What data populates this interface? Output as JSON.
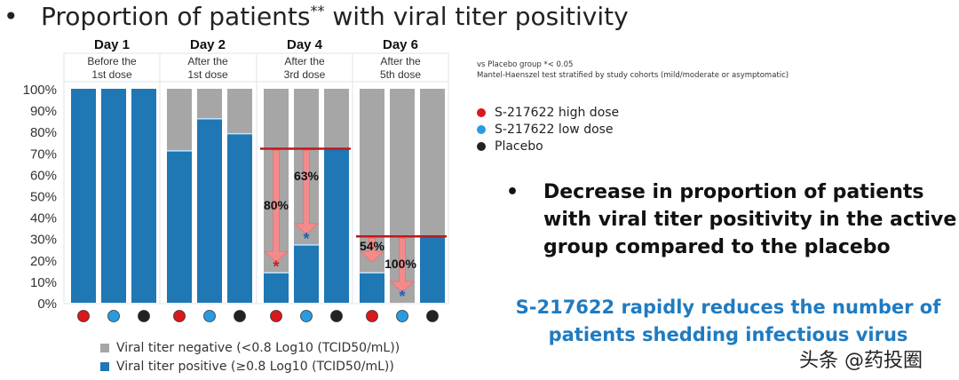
{
  "title": {
    "bullet": "•",
    "text": "Proportion of patients",
    "superscript": "**",
    "text_after": " with viral titer positivity"
  },
  "chart_data": {
    "type": "bar",
    "stacked": true,
    "ylim": [
      0,
      100
    ],
    "yticks": [
      "0%",
      "10%",
      "20%",
      "30%",
      "40%",
      "50%",
      "60%",
      "70%",
      "80%",
      "90%",
      "100%"
    ],
    "groups": [
      {
        "day": "Day 1",
        "sub1": "Before the",
        "sub2": "1st dose"
      },
      {
        "day": "Day 2",
        "sub1": "After the",
        "sub2": "1st dose"
      },
      {
        "day": "Day 4",
        "sub1": "After the",
        "sub2": "3rd dose"
      },
      {
        "day": "Day 6",
        "sub1": "After the",
        "sub2": "5th dose"
      }
    ],
    "arms": [
      "S-217622 high dose",
      "S-217622 low dose",
      "Placebo"
    ],
    "arm_colors": [
      "#d7191c",
      "#2b9be0",
      "#222222"
    ],
    "series": [
      {
        "name": "Viral titer positive (≥0.8 Log10 (TCID50/mL))",
        "color": "#1f77b4",
        "values": [
          [
            100,
            100,
            100
          ],
          [
            71,
            86,
            79
          ],
          [
            14,
            27,
            72
          ],
          [
            14,
            0,
            31
          ]
        ]
      },
      {
        "name": "Viral titer negative (<0.8 Log10 (TCID50/mL))",
        "color": "#a6a6a6",
        "values": [
          [
            0,
            0,
            0
          ],
          [
            29,
            14,
            21
          ],
          [
            86,
            73,
            28
          ],
          [
            86,
            100,
            69
          ]
        ]
      }
    ],
    "annotations": [
      {
        "group": 2,
        "arm": 0,
        "label": "80%",
        "star": "*",
        "star_color": "#d7191c"
      },
      {
        "group": 2,
        "arm": 1,
        "label": "63%",
        "star": "*",
        "star_color": "#1f5fbf"
      },
      {
        "group": 3,
        "arm": 0,
        "label": "54%",
        "star": ""
      },
      {
        "group": 3,
        "arm": 1,
        "label": "100%",
        "star": "*",
        "star_color": "#1f5fbf"
      }
    ],
    "reference_color": "#c0161d",
    "arrow_color": "#f78b8b"
  },
  "notes": {
    "line1": "vs Placebo group *< 0.05",
    "line2": "Mantel-Haenszel test stratified by study cohorts (mild/moderate or asymptomatic)"
  },
  "legend": {
    "items": [
      {
        "label": "S-217622 high dose",
        "color": "#d7191c"
      },
      {
        "label": "S-217622 low dose",
        "color": "#2b9be0"
      },
      {
        "label": "Placebo",
        "color": "#222222"
      }
    ]
  },
  "bottom_legend": {
    "negative": "Viral titer negative (<0.8 Log10 (TCID50/mL))",
    "positive": "Viral titer positive (≥0.8 Log10 (TCID50/mL))"
  },
  "bullet_point": {
    "bullet": "•",
    "text": "Decrease in proportion of patients with viral titer positivity in the active group compared to the placebo"
  },
  "conclusion": "S-217622 rapidly reduces the number of patients shedding infectious virus",
  "watermark": "头条 @药投圈"
}
